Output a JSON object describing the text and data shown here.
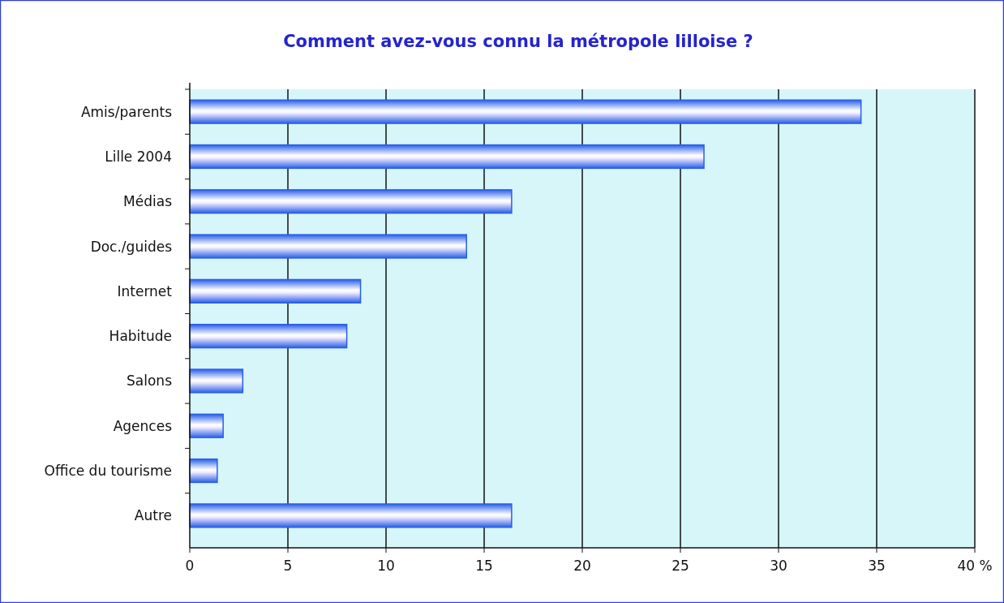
{
  "chart_data": {
    "type": "bar",
    "orientation": "horizontal",
    "title": "Comment avez-vous connu la métropole lilloise ?",
    "categories": [
      "Amis/parents",
      "Lille 2004",
      "Médias",
      "Doc./guides",
      "Internet",
      "Habitude",
      "Salons",
      "Agences",
      "Office du tourisme",
      "Autre"
    ],
    "values": [
      34.2,
      26.2,
      16.4,
      14.1,
      8.7,
      8.0,
      2.7,
      1.7,
      1.4,
      16.4
    ],
    "color": "#2a5fe8",
    "xlim": [
      0,
      40
    ],
    "xticks": [
      0,
      5,
      10,
      15,
      20,
      25,
      30,
      35,
      {
        "value": 40,
        "label": "40 %"
      }
    ],
    "grid": "x"
  }
}
